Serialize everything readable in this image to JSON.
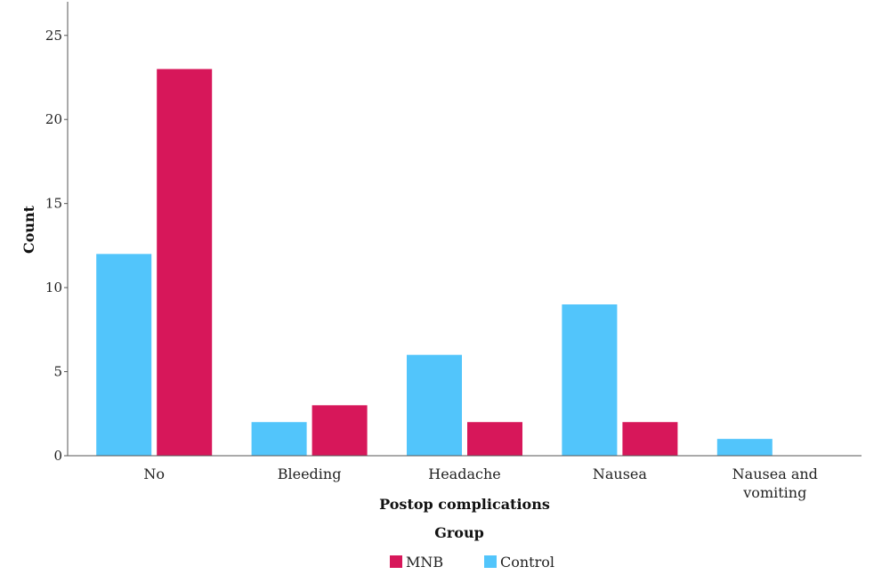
{
  "chart_data": {
    "type": "bar",
    "categories": [
      "No",
      "Bleeding",
      "Headache",
      "Nausea",
      "Nausea and vomiting"
    ],
    "series": [
      {
        "name": "Control",
        "color": "#52c5fb",
        "values": [
          12,
          2,
          6,
          9,
          1
        ]
      },
      {
        "name": "MNB",
        "color": "#d7175a",
        "values": [
          23,
          3,
          2,
          2,
          0
        ]
      }
    ],
    "xlabel": "Postop complications",
    "ylabel": "Count",
    "ylim": [
      0,
      27
    ],
    "yticks": [
      0,
      5,
      10,
      15,
      20,
      25
    ],
    "legend": {
      "title": "Group",
      "placement": "bottom-center",
      "entries": [
        "MNB",
        "Control"
      ]
    },
    "grid": false
  }
}
